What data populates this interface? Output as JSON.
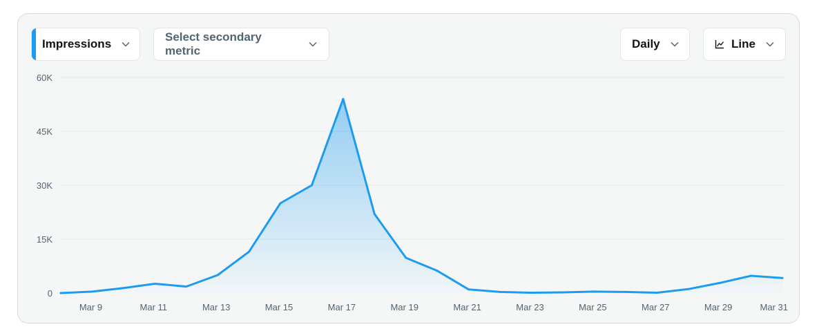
{
  "controls": {
    "primary_metric": "Impressions",
    "secondary_metric": "Select secondary metric",
    "interval": "Daily",
    "chart_type": "Line"
  },
  "icons": [
    "chevron-down-icon",
    "line-chart-icon"
  ],
  "colors": {
    "line": "#1d9bf0",
    "accent": "#1d9bf0",
    "grid": "#e3e8ea",
    "tick": "#536471"
  },
  "chart_data": {
    "type": "area",
    "x": [
      "Mar 8",
      "Mar 9",
      "Mar 10",
      "Mar 11",
      "Mar 12",
      "Mar 13",
      "Mar 14",
      "Mar 15",
      "Mar 16",
      "Mar 17",
      "Mar 18",
      "Mar 19",
      "Mar 20",
      "Mar 21",
      "Mar 22",
      "Mar 23",
      "Mar 24",
      "Mar 25",
      "Mar 26",
      "Mar 27",
      "Mar 28",
      "Mar 29",
      "Mar 30",
      "Mar 31"
    ],
    "x_tick_labels": [
      "Mar 9",
      "Mar 11",
      "Mar 13",
      "Mar 15",
      "Mar 17",
      "Mar 19",
      "Mar 21",
      "Mar 23",
      "Mar 25",
      "Mar 27",
      "Mar 29",
      "Mar 31"
    ],
    "series": [
      {
        "values": [
          0,
          400,
          1400,
          2600,
          1800,
          5000,
          11500,
          25000,
          30000,
          54000,
          22000,
          9800,
          6200,
          1000,
          300,
          100,
          200,
          400,
          300,
          100,
          1100,
          2800,
          4800,
          4200
        ]
      }
    ],
    "y_ticks": [
      "0",
      "15K",
      "30K",
      "45K",
      "60K"
    ],
    "ylim": [
      0,
      60000
    ],
    "grid": true,
    "legend": "none"
  }
}
